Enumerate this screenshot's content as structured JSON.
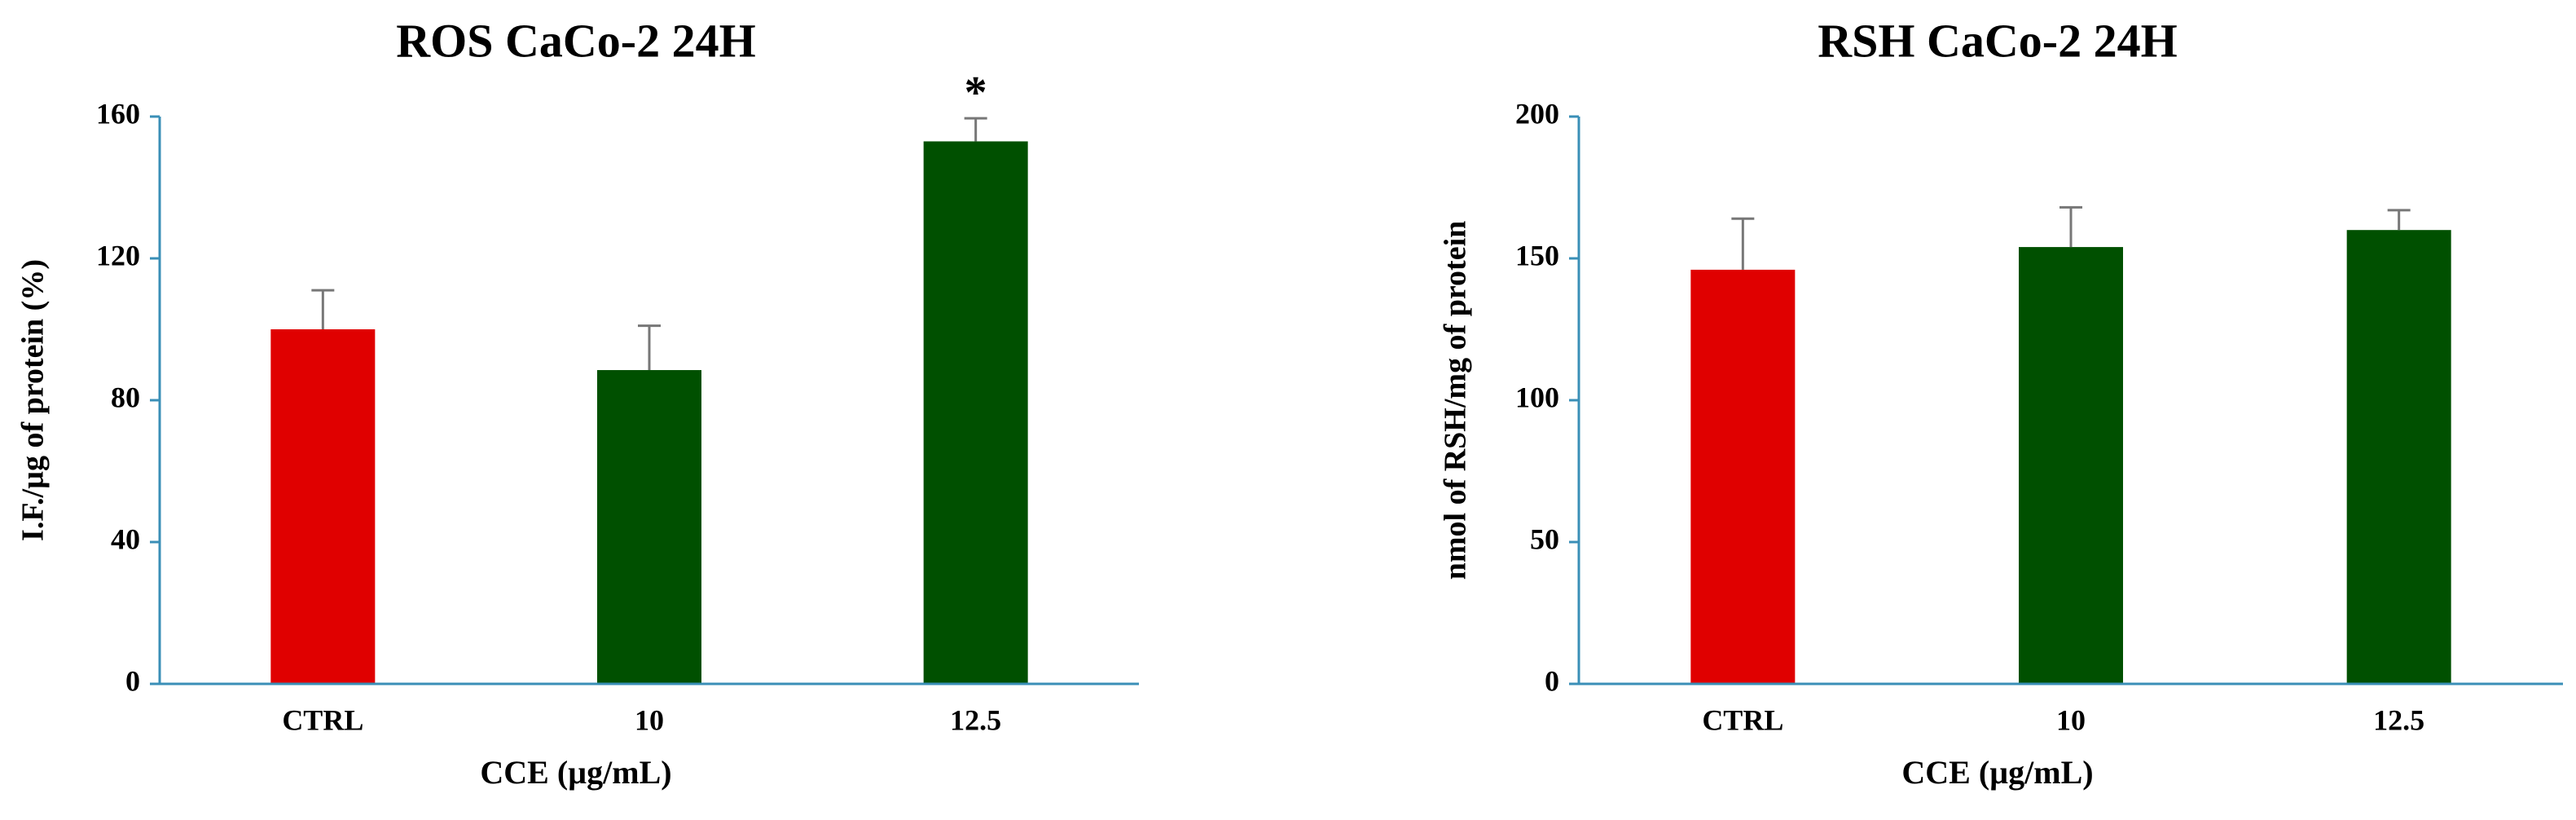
{
  "chart_data": [
    {
      "type": "bar",
      "title": "ROS CaCo-2 24H",
      "x_label": "CCE (µg/mL)",
      "y_label": "I.F./µg of protein (%)",
      "categories": [
        "CTRL",
        "10",
        "12.5"
      ],
      "values": [
        100,
        88.5,
        153
      ],
      "errors": [
        11,
        12.5,
        6.5
      ],
      "colors": [
        "#e00000",
        "#005000",
        "#005000"
      ],
      "ylim": [
        0,
        160
      ],
      "yticks": [
        0,
        40,
        80,
        120,
        160
      ],
      "annotations": [
        {
          "text": "*",
          "category": "12.5"
        }
      ]
    },
    {
      "type": "bar",
      "title": "RSH CaCo-2 24H",
      "x_label": "CCE (µg/mL)",
      "y_label": "nmol of RSH/mg of protein",
      "categories": [
        "CTRL",
        "10",
        "12.5"
      ],
      "values": [
        146,
        154,
        160
      ],
      "errors": [
        18,
        14,
        7
      ],
      "colors": [
        "#e00000",
        "#005000",
        "#005000"
      ],
      "ylim": [
        0,
        200
      ],
      "yticks": [
        0,
        50,
        100,
        150,
        200
      ]
    }
  ]
}
